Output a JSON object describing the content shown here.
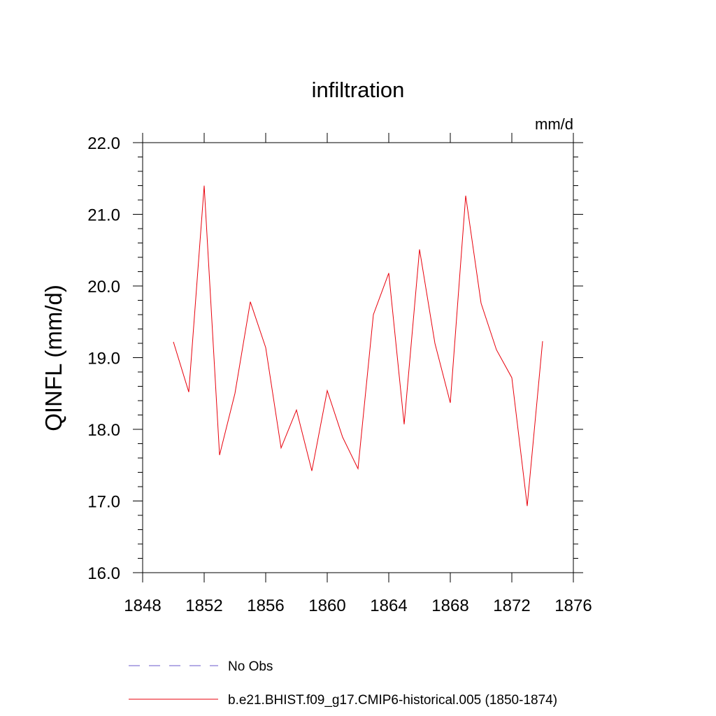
{
  "chart_data": {
    "type": "line",
    "title": "infiltration",
    "units_label": "mm/d",
    "ylabel": "QINFL  (mm/d)",
    "xlabel": "",
    "xlim": [
      1848,
      1876
    ],
    "ylim": [
      16.0,
      22.0
    ],
    "x_ticks": [
      1848,
      1852,
      1856,
      1860,
      1864,
      1868,
      1872,
      1876
    ],
    "x_tick_labels": [
      "1848",
      "1852",
      "1856",
      "1860",
      "1864",
      "1868",
      "1872",
      "1876"
    ],
    "y_ticks": [
      16.0,
      17.0,
      18.0,
      19.0,
      20.0,
      21.0,
      22.0
    ],
    "y_tick_labels": [
      "16.0",
      "17.0",
      "18.0",
      "19.0",
      "20.0",
      "21.0",
      "22.0"
    ],
    "grid": false,
    "legend_position": "bottom",
    "series": [
      {
        "name": "b.e21.BHIST.f09_g17.CMIP6-historical.005 (1850-1874)",
        "color": "#e8000b",
        "style": "solid",
        "x": [
          1850,
          1851,
          1852,
          1853,
          1854,
          1855,
          1856,
          1857,
          1858,
          1859,
          1860,
          1861,
          1862,
          1863,
          1864,
          1865,
          1866,
          1867,
          1868,
          1869,
          1870,
          1871,
          1872,
          1873,
          1874
        ],
        "y": [
          19.22,
          18.52,
          21.4,
          17.64,
          18.5,
          19.78,
          19.14,
          17.74,
          18.27,
          17.42,
          18.54,
          17.89,
          17.45,
          19.6,
          20.18,
          18.07,
          20.51,
          19.2,
          18.37,
          21.26,
          19.76,
          19.11,
          18.72,
          16.93,
          19.23
        ]
      }
    ],
    "legend": [
      {
        "label": "No Obs",
        "color": "#6a5acd",
        "style": "dashed"
      },
      {
        "label": "b.e21.BHIST.f09_g17.CMIP6-historical.005 (1850-1874)",
        "color": "#e8000b",
        "style": "solid"
      }
    ]
  }
}
